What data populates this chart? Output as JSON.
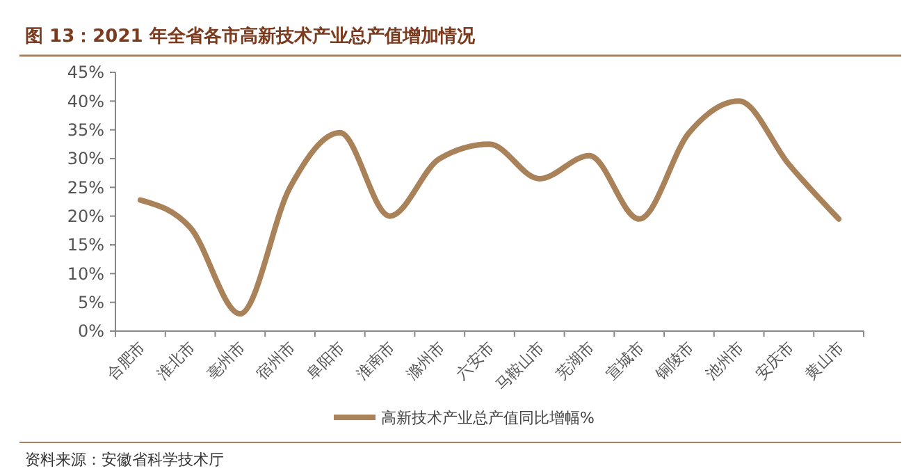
{
  "chart_data": {
    "type": "line",
    "title": "图 13：2021 年全省各市高新技术产业总产值增加情况",
    "categories": [
      "合肥市",
      "淮北市",
      "亳州市",
      "宿州市",
      "阜阳市",
      "淮南市",
      "滁州市",
      "六安市",
      "马鞍山市",
      "芜湖市",
      "宣城市",
      "铜陵市",
      "池州市",
      "安庆市",
      "黄山市"
    ],
    "series": [
      {
        "name": "高新技术产业总产值同比增幅%",
        "color": "#a9825a",
        "values": [
          22.8,
          18,
          3,
          25,
          34.5,
          20,
          30,
          32.5,
          26.5,
          30.5,
          19.5,
          34.5,
          40,
          29,
          19.5
        ]
      }
    ],
    "ylim": [
      0,
      45
    ],
    "yticks": [
      {
        "value": 0,
        "label": "0%"
      },
      {
        "value": 5,
        "label": "5%"
      },
      {
        "value": 10,
        "label": "10%"
      },
      {
        "value": 15,
        "label": "15%"
      },
      {
        "value": 20,
        "label": "20%"
      },
      {
        "value": 25,
        "label": "25%"
      },
      {
        "value": 30,
        "label": "30%"
      },
      {
        "value": 35,
        "label": "35%"
      },
      {
        "value": 40,
        "label": "40%"
      },
      {
        "value": 45,
        "label": "45%"
      }
    ],
    "grid": false,
    "legend": "bottom",
    "marker": "none",
    "line_style": "solid",
    "annotations": [
      "资料来源：安徽省科学技术厅"
    ]
  }
}
